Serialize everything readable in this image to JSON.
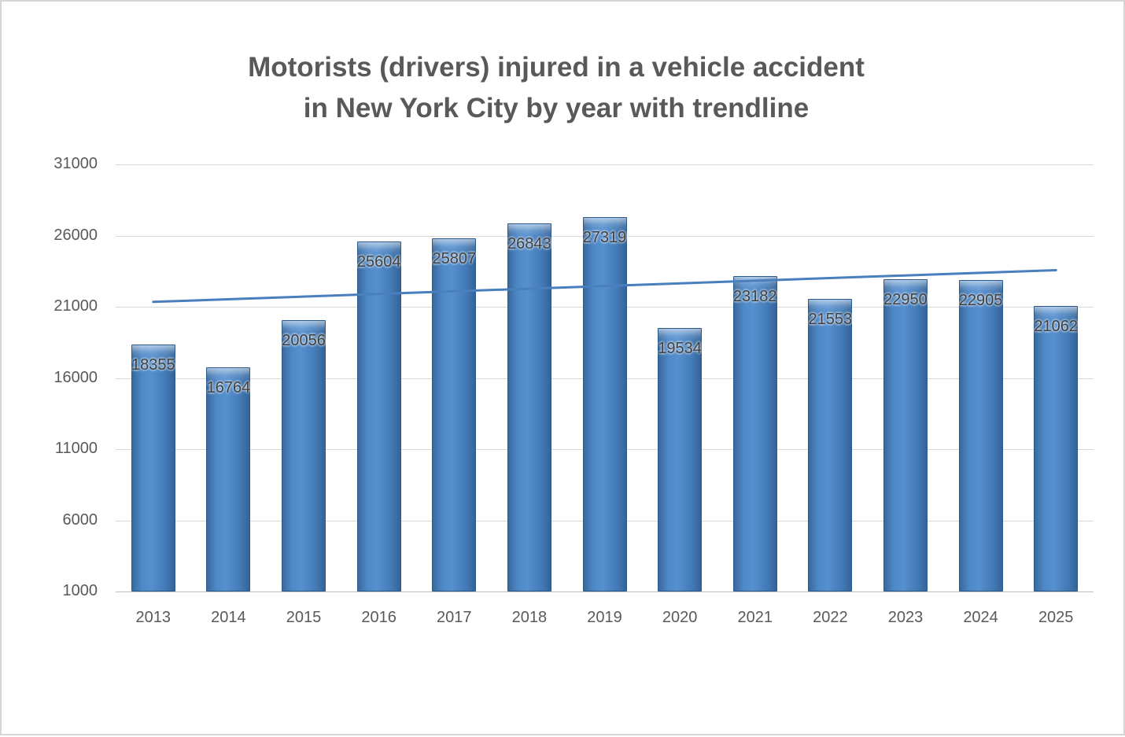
{
  "title": {
    "line1": "Motorists (drivers) injured in a vehicle accident",
    "line2": "in New York City by year with trendline"
  },
  "chart_data": {
    "type": "bar",
    "title": "Motorists (drivers) injured in a vehicle accident in New York City by year with trendline",
    "categories": [
      "2013",
      "2014",
      "2015",
      "2016",
      "2017",
      "2018",
      "2019",
      "2020",
      "2021",
      "2022",
      "2023",
      "2024",
      "2025"
    ],
    "values": [
      18355,
      16764,
      20056,
      25604,
      25807,
      26843,
      27319,
      19534,
      23182,
      21553,
      22950,
      22905,
      21062
    ],
    "data_labels": [
      18355,
      16764,
      20056,
      25604,
      25807,
      26843,
      27319,
      19534,
      23182,
      21553,
      22950,
      22905,
      21062
    ],
    "xlabel": "",
    "ylabel": "",
    "ylim": [
      1000,
      31000
    ],
    "yticks": [
      1000,
      6000,
      11000,
      16000,
      21000,
      26000,
      31000
    ],
    "grid": true,
    "legend": "none",
    "bar_color": "#4f88c6",
    "trendline": {
      "type": "linear",
      "start_value": 21342,
      "end_value": 23571,
      "color": "#4a7fbe"
    }
  }
}
